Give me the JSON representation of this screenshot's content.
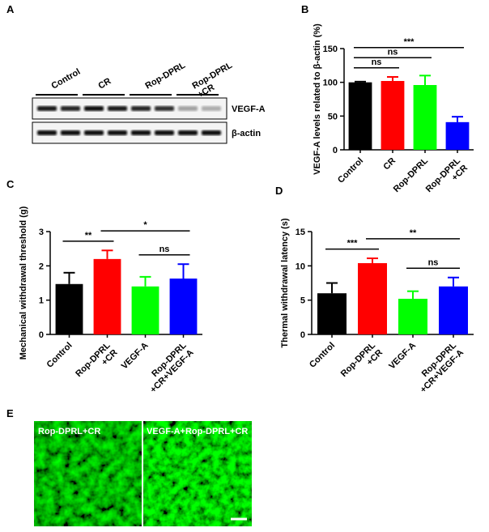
{
  "panel_labels": [
    "A",
    "B",
    "C",
    "D",
    "E"
  ],
  "blot": {
    "lanes": [
      "Control",
      "CR",
      "Rop-DPRL",
      "Rop-DPRL\n+CR"
    ],
    "bands": [
      "VEGF-A",
      "β-actin"
    ]
  },
  "images": [
    "Rop-DPRL+CR",
    "VEGF-A+Rop-DPRL+CR"
  ],
  "chart_data": [
    {
      "type": "bar",
      "y_label": "VEGF-A levels related to β-actin (%)",
      "categories": [
        "Control",
        "CR",
        "Rop-DPRL",
        "Rop-DPRL\n+CR"
      ],
      "values": [
        100,
        102,
        96,
        41
      ],
      "errors": [
        1,
        6,
        14,
        8
      ],
      "colors": [
        "#000000",
        "#ff0000",
        "#00ff00",
        "#0000ff"
      ],
      "ylim": [
        0,
        150
      ],
      "yticks": [
        0,
        50,
        100,
        150
      ],
      "annotations": [
        {
          "text": "ns",
          "from": 0,
          "to": 1
        },
        {
          "text": "ns",
          "from": 0,
          "to": 2
        },
        {
          "text": "***",
          "from": 0,
          "to": 3
        }
      ]
    },
    {
      "type": "bar",
      "y_label": "Mechanical withdrawal threshold (g)",
      "categories": [
        "Control",
        "Rop-DPRL\n+CR",
        "VEGF-A",
        "Rop-DPRL\n+CR+VEGF-A"
      ],
      "values": [
        1.47,
        2.2,
        1.4,
        1.63
      ],
      "errors": [
        0.33,
        0.25,
        0.28,
        0.42
      ],
      "colors": [
        "#000000",
        "#ff0000",
        "#00ff00",
        "#0000ff"
      ],
      "ylim": [
        0,
        3
      ],
      "yticks": [
        0,
        1,
        2,
        3
      ],
      "annotations": [
        {
          "text": "**",
          "from": 0,
          "to": 1
        },
        {
          "text": "*",
          "from": 1,
          "to": 3
        },
        {
          "text": "ns",
          "from": 2,
          "to": 3
        }
      ]
    },
    {
      "type": "bar",
      "y_label": "Thermal withdrawal latency (s)",
      "categories": [
        "Control",
        "Rop-DPRL\n+CR",
        "VEGF-A",
        "Rop-DPRL\n+CR+VEGF-A"
      ],
      "values": [
        6.0,
        10.4,
        5.2,
        7.0
      ],
      "errors": [
        1.5,
        0.7,
        1.1,
        1.3
      ],
      "colors": [
        "#000000",
        "#ff0000",
        "#00ff00",
        "#0000ff"
      ],
      "ylim": [
        0,
        15
      ],
      "yticks": [
        0,
        5,
        10,
        15
      ],
      "annotations": [
        {
          "text": "***",
          "from": 0,
          "to": 1
        },
        {
          "text": "**",
          "from": 1,
          "to": 3
        },
        {
          "text": "ns",
          "from": 2,
          "to": 3
        }
      ]
    }
  ]
}
